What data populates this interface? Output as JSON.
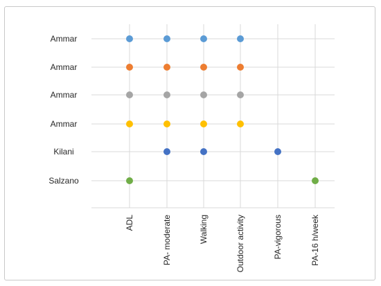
{
  "chart_data": {
    "type": "scatter",
    "title": "",
    "xlabel": "",
    "ylabel": "",
    "x_categories": [
      "ADL",
      "PA- moderate",
      "Walking",
      "Outdoor activity",
      "PA-vigorous",
      "PA-16 h/week"
    ],
    "y_categories": [
      "Salzano",
      "Kilani",
      "Ammar",
      "Ammar",
      "Ammar",
      "Ammar"
    ],
    "grid": true,
    "legend": "none",
    "series": [
      {
        "row": 5,
        "color": "#5b9bd5",
        "points": [
          "ADL",
          "PA- moderate",
          "Walking",
          "Outdoor activity"
        ]
      },
      {
        "row": 4,
        "color": "#ed7d31",
        "points": [
          "ADL",
          "PA- moderate",
          "Walking",
          "Outdoor activity"
        ]
      },
      {
        "row": 3,
        "color": "#a5a5a5",
        "points": [
          "ADL",
          "PA- moderate",
          "Walking",
          "Outdoor activity"
        ]
      },
      {
        "row": 2,
        "color": "#ffc000",
        "points": [
          "ADL",
          "PA- moderate",
          "Walking",
          "Outdoor activity"
        ]
      },
      {
        "row": 1,
        "color": "#4472c4",
        "points": [
          "PA- moderate",
          "Walking",
          "PA-vigorous"
        ]
      },
      {
        "row": 0,
        "color": "#70ad47",
        "points": [
          "ADL",
          "PA-16 h/week"
        ]
      }
    ]
  }
}
